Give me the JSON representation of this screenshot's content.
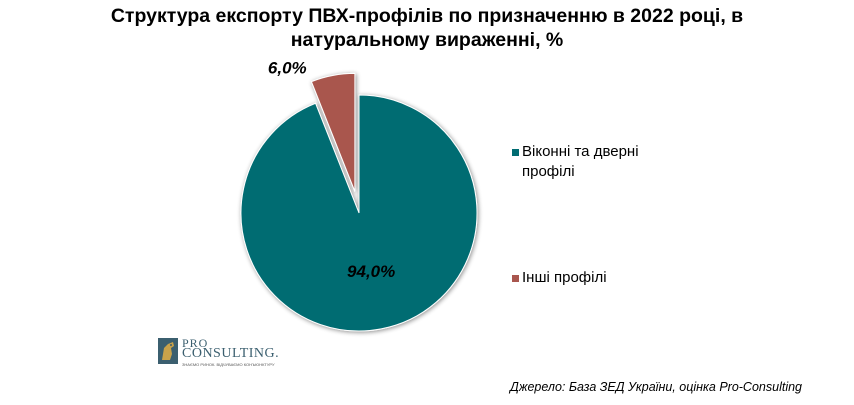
{
  "title": {
    "line1": "Структура експорту ПВХ-профілів по призначенню в 2022 році, в",
    "line2": "натуральному вираженні, %"
  },
  "chart_data": {
    "type": "pie",
    "categories": [
      "Віконні та дверні профілі",
      "Інші  профілі"
    ],
    "values": [
      94.0,
      6.0
    ],
    "data_labels": [
      "94,0%",
      "6,0%"
    ],
    "colors": [
      "#006c72",
      "#a9564e"
    ],
    "exploded": [
      false,
      true
    ],
    "title": "Структура експорту ПВХ-профілів по призначенню в 2022 році, в натуральному вираженні, %",
    "legend_position": "right"
  },
  "legend": {
    "items": [
      {
        "label_line1": "Віконні та дверні",
        "label_line2": "профілі",
        "color": "#006c72"
      },
      {
        "label_line1": "Інші  профілі",
        "label_line2": "",
        "color": "#a9564e"
      }
    ]
  },
  "logo": {
    "line1": "PRO",
    "line2": "CONSULTING.",
    "tagline": "ЗНАЄМО РИНОК. ВІДЧУВАЄМО КОНЪЮНКТУРУ"
  },
  "source": "Джерело: База ЗЕД України, оцінка Pro-Consulting"
}
